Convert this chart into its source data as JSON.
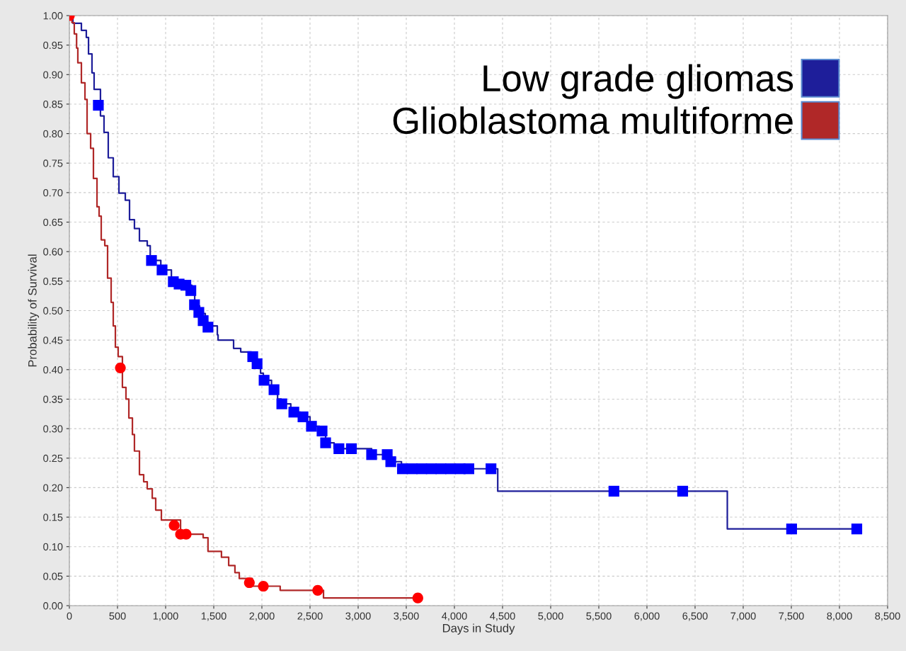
{
  "chart_data": {
    "type": "step",
    "xlabel": "Days in Study",
    "ylabel": "Probability of Survival",
    "xlim": [
      0,
      8500
    ],
    "xticks": [
      {
        "value": 0,
        "label": "0"
      },
      {
        "value": 500,
        "label": "500"
      },
      {
        "value": 1000,
        "label": "1,000"
      },
      {
        "value": 1500,
        "label": "1,500"
      },
      {
        "value": 2000,
        "label": "2,000"
      },
      {
        "value": 2500,
        "label": "2,500"
      },
      {
        "value": 3000,
        "label": "3,000"
      },
      {
        "value": 3500,
        "label": "3,500"
      },
      {
        "value": 4000,
        "label": "4,000"
      },
      {
        "value": 4500,
        "label": "4,500"
      },
      {
        "value": 5000,
        "label": "5,000"
      },
      {
        "value": 5500,
        "label": "5,500"
      },
      {
        "value": 6000,
        "label": "6,000"
      },
      {
        "value": 6500,
        "label": "6,500"
      },
      {
        "value": 7000,
        "label": "7,000"
      },
      {
        "value": 7500,
        "label": "7,500"
      },
      {
        "value": 8000,
        "label": "8,000"
      },
      {
        "value": 8500,
        "label": "8,500"
      }
    ],
    "ylim": [
      0,
      1
    ],
    "yticks": [
      {
        "value": 0,
        "label": "0.00"
      },
      {
        "value": 0.05,
        "label": "0.05"
      },
      {
        "value": 0.1,
        "label": "0.10"
      },
      {
        "value": 0.15,
        "label": "0.15"
      },
      {
        "value": 0.2,
        "label": "0.20"
      },
      {
        "value": 0.25,
        "label": "0.25"
      },
      {
        "value": 0.3,
        "label": "0.30"
      },
      {
        "value": 0.35,
        "label": "0.35"
      },
      {
        "value": 0.4,
        "label": "0.40"
      },
      {
        "value": 0.45,
        "label": "0.45"
      },
      {
        "value": 0.5,
        "label": "0.50"
      },
      {
        "value": 0.55,
        "label": "0.55"
      },
      {
        "value": 0.6,
        "label": "0.60"
      },
      {
        "value": 0.65,
        "label": "0.65"
      },
      {
        "value": 0.7,
        "label": "0.70"
      },
      {
        "value": 0.75,
        "label": "0.75"
      },
      {
        "value": 0.8,
        "label": "0.80"
      },
      {
        "value": 0.85,
        "label": "0.85"
      },
      {
        "value": 0.9,
        "label": "0.90"
      },
      {
        "value": 0.95,
        "label": "0.95"
      },
      {
        "value": 1,
        "label": "1.00"
      }
    ],
    "grid": true,
    "legend": "top right",
    "line_style": "solid",
    "marker": "none",
    "series": [
      {
        "name": "Low grade gliomas",
        "color": "#1e1e9a",
        "x": [
          0,
          37,
          110,
          125,
          176,
          199,
          235,
          257,
          323,
          360,
          404,
          456,
          515,
          581,
          625,
          676,
          728,
          809,
          840,
          950,
          1060,
          1191,
          1272,
          1302,
          1353,
          1412,
          1434,
          1537,
          1545,
          1706,
          1780,
          1890,
          1945,
          1986,
          2015,
          2100,
          2163,
          2200,
          2300,
          2400,
          2500,
          2600,
          2662,
          2750,
          3140,
          3339,
          3450,
          4450,
          6835,
          8180
        ],
        "values": [
          1.0,
          0.987,
          0.987,
          0.975,
          0.963,
          0.935,
          0.903,
          0.875,
          0.83,
          0.802,
          0.759,
          0.727,
          0.699,
          0.687,
          0.654,
          0.639,
          0.618,
          0.61,
          0.585,
          0.569,
          0.549,
          0.543,
          0.534,
          0.508,
          0.495,
          0.483,
          0.474,
          0.459,
          0.45,
          0.436,
          0.43,
          0.422,
          0.41,
          0.394,
          0.382,
          0.366,
          0.35,
          0.342,
          0.328,
          0.32,
          0.304,
          0.296,
          0.276,
          0.266,
          0.256,
          0.244,
          0.232,
          0.194,
          0.13,
          0.13
        ]
      },
      {
        "name": "Glioblastoma multiforme",
        "color": "#b02828",
        "x": [
          0,
          27,
          51,
          75,
          88,
          125,
          162,
          184,
          221,
          250,
          287,
          309,
          331,
          368,
          397,
          434,
          456,
          478,
          507,
          551,
          588,
          618,
          655,
          676,
          728,
          772,
          809,
          861,
          897,
          956,
          1155,
          1390,
          1440,
          1580,
          1655,
          1720,
          1765,
          1900,
          2190,
          2640,
          3620
        ],
        "values": [
          1.0,
          0.988,
          0.969,
          0.945,
          0.92,
          0.886,
          0.858,
          0.8,
          0.775,
          0.724,
          0.676,
          0.66,
          0.62,
          0.61,
          0.555,
          0.514,
          0.474,
          0.438,
          0.422,
          0.37,
          0.35,
          0.318,
          0.29,
          0.262,
          0.222,
          0.21,
          0.198,
          0.182,
          0.162,
          0.145,
          0.121,
          0.115,
          0.092,
          0.082,
          0.068,
          0.056,
          0.046,
          0.033,
          0.026,
          0.013,
          0.013
        ]
      },
      {
        "type": "scatter",
        "marker": "square",
        "color": "#0000ff",
        "x": [
          301,
          853,
          963,
          1080,
          1140,
          1210,
          1262,
          1300,
          1345,
          1390,
          1440,
          1905,
          1950,
          2023,
          2126,
          2207,
          2332,
          2427,
          2515,
          2625,
          2662,
          2800,
          2930,
          3140,
          3302,
          3339,
          3460,
          3560,
          3660,
          3760,
          3860,
          3960,
          4060,
          4150,
          4380,
          5657,
          6371,
          7503,
          8180
        ],
        "values": [
          0.848,
          0.585,
          0.569,
          0.549,
          0.545,
          0.543,
          0.534,
          0.51,
          0.497,
          0.483,
          0.472,
          0.422,
          0.41,
          0.382,
          0.366,
          0.342,
          0.328,
          0.32,
          0.304,
          0.296,
          0.276,
          0.266,
          0.266,
          0.256,
          0.256,
          0.244,
          0.232,
          0.232,
          0.232,
          0.232,
          0.232,
          0.232,
          0.232,
          0.232,
          0.232,
          0.194,
          0.194,
          0.13,
          0.13
        ]
      },
      {
        "type": "scatter",
        "marker": "circle",
        "color": "#ff0000",
        "x": [
          0,
          530,
          1089,
          1155,
          1213,
          1870,
          2015,
          2580,
          3620
        ],
        "values": [
          1.0,
          0.403,
          0.136,
          0.121,
          0.121,
          0.039,
          0.033,
          0.026,
          0.013
        ]
      }
    ]
  }
}
